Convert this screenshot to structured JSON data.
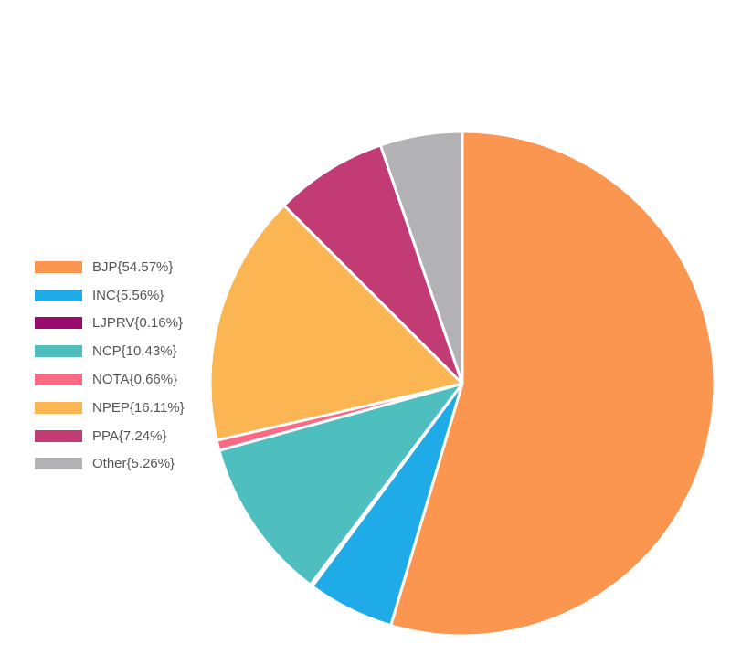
{
  "chart_data": {
    "type": "pie",
    "legend_position": "left",
    "slices": [
      {
        "label": "BJP",
        "legend_text": "BJP{54.57%}",
        "value": 54.57,
        "color": "#FB9650"
      },
      {
        "label": "INC",
        "legend_text": "INC{5.56%}",
        "value": 5.56,
        "color": "#1EABE7"
      },
      {
        "label": "LJPRV",
        "legend_text": "LJPRV{0.16%}",
        "value": 0.16,
        "color": "#9C0A70"
      },
      {
        "label": "NCP",
        "legend_text": "NCP{10.43%}",
        "value": 10.43,
        "color": "#4FBEBF"
      },
      {
        "label": "NOTA",
        "legend_text": "NOTA{0.66%}",
        "value": 0.66,
        "color": "#FB6985"
      },
      {
        "label": "NPEP",
        "legend_text": "NPEP{16.11%}",
        "value": 16.11,
        "color": "#FBB552"
      },
      {
        "label": "PPA",
        "legend_text": "PPA{7.24%}",
        "value": 7.24,
        "color": "#C23B74"
      },
      {
        "label": "Other",
        "legend_text": "Other{5.26%}",
        "value": 5.26,
        "color": "#B2B2B4"
      }
    ]
  }
}
